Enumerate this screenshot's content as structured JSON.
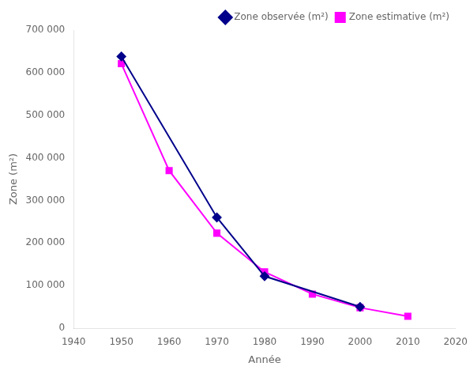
{
  "chart_data": {
    "type": "line",
    "xlabel": "Année",
    "ylabel": "Zone (m²)",
    "series": [
      {
        "name": "Zone observée (m²)",
        "color": "#00008B",
        "marker": "diamond",
        "x": [
          1950,
          1970,
          1980,
          2000
        ],
        "values": [
          638000,
          260000,
          122000,
          50000
        ]
      },
      {
        "name": "Zone estimative (m²)",
        "color": "#FF00FF",
        "marker": "square",
        "x": [
          1950,
          1960,
          1970,
          1980,
          1990,
          2000,
          2010
        ],
        "values": [
          621000,
          370000,
          223000,
          132000,
          80000,
          48000,
          28000
        ]
      }
    ],
    "xlim": [
      1940,
      2020
    ],
    "xticks": [
      1940,
      1950,
      1960,
      1970,
      1980,
      1990,
      2000,
      2010,
      2020
    ],
    "ylim": [
      0,
      700000
    ],
    "yticks": [
      0,
      {
        "value": 100000,
        "label": "100 000"
      },
      {
        "value": 200000,
        "label": "200 000"
      },
      {
        "value": 300000,
        "label": "300 000"
      },
      {
        "value": 400000,
        "label": "400 000"
      },
      {
        "value": 500000,
        "label": "500 000"
      },
      {
        "value": 600000,
        "label": "600 000"
      },
      {
        "value": 700000,
        "label": "700 000"
      }
    ],
    "grid": false,
    "legend": "upper right"
  }
}
